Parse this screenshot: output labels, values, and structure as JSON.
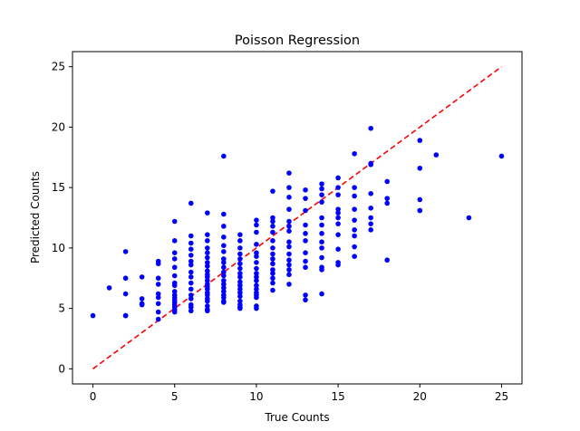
{
  "chart_data": {
    "type": "scatter",
    "title": "Poisson Regression",
    "xlabel": "True Counts",
    "ylabel": "Predicted Counts",
    "xlim": [
      -1.25,
      26.25
    ],
    "ylim": [
      -1.25,
      26.25
    ],
    "xticks": [
      "0",
      "5",
      "10",
      "15",
      "20",
      "25"
    ],
    "yticks": [
      "0",
      "5",
      "10",
      "15",
      "20",
      "25"
    ],
    "grid": false,
    "point_color": "#0000ff",
    "reference_line": {
      "x": [
        0,
        25
      ],
      "y": [
        0,
        25
      ],
      "color": "#ff0000",
      "style": "dashed"
    },
    "x": [
      0,
      1,
      2,
      2,
      2,
      2,
      2,
      3,
      3,
      3,
      3,
      4,
      4,
      4,
      4,
      4,
      4,
      4,
      4,
      4,
      5,
      5,
      5,
      5,
      5,
      5,
      5,
      5,
      5,
      5,
      5,
      5,
      5,
      5,
      5,
      5,
      5,
      6,
      6,
      6,
      6,
      6,
      6,
      6,
      6,
      6,
      6,
      6,
      6,
      6,
      6,
      6,
      6,
      7,
      7,
      7,
      7,
      7,
      7,
      7,
      7,
      7,
      7,
      7,
      7,
      7,
      7,
      7,
      7,
      7,
      7,
      7,
      7,
      7,
      7,
      7,
      8,
      8,
      8,
      8,
      8,
      8,
      8,
      8,
      8,
      8,
      8,
      8,
      8,
      8,
      8,
      8,
      8,
      8,
      8,
      9,
      9,
      9,
      9,
      9,
      9,
      9,
      9,
      9,
      9,
      9,
      9,
      9,
      9,
      9,
      9,
      9,
      9,
      10,
      10,
      10,
      10,
      10,
      10,
      10,
      10,
      10,
      10,
      10,
      10,
      10,
      10,
      10,
      10,
      10,
      10,
      11,
      11,
      11,
      11,
      11,
      11,
      11,
      11,
      11,
      11,
      11,
      11,
      11,
      11,
      11,
      12,
      12,
      12,
      12,
      12,
      12,
      12,
      12,
      12,
      12,
      12,
      12,
      12,
      12,
      12,
      13,
      13,
      13,
      13,
      13,
      13,
      13,
      13,
      13,
      13,
      13,
      14,
      14,
      14,
      14,
      14,
      14,
      14,
      14,
      14,
      14,
      14,
      14,
      14,
      15,
      15,
      15,
      15,
      15,
      15,
      15,
      15,
      15,
      15,
      15,
      16,
      16,
      16,
      16,
      16,
      16,
      16,
      16,
      16,
      17,
      17,
      17,
      17,
      17,
      17,
      17,
      17,
      18,
      18,
      18,
      18,
      20,
      20,
      20,
      20,
      20,
      21,
      23,
      25
    ],
    "y": [
      4.4,
      6.7,
      9.7,
      7.5,
      6.2,
      4.4,
      4.4,
      7.6,
      5.8,
      5.4,
      5.3,
      8.9,
      8.7,
      7.5,
      7.0,
      6.2,
      5.9,
      5.4,
      4.7,
      4.1,
      12.2,
      10.6,
      9.6,
      9.1,
      8.4,
      7.7,
      7.1,
      6.9,
      6.4,
      6.1,
      5.9,
      5.7,
      5.5,
      5.3,
      5.1,
      4.9,
      4.7,
      13.7,
      11.0,
      10.4,
      9.9,
      9.4,
      8.9,
      8.6,
      8.0,
      7.6,
      7.1,
      6.6,
      6.1,
      5.8,
      5.3,
      5.1,
      4.8,
      12.9,
      11.1,
      10.6,
      10.0,
      9.6,
      9.2,
      8.8,
      8.5,
      8.1,
      7.8,
      7.6,
      7.3,
      7.0,
      6.8,
      6.6,
      6.3,
      6.1,
      5.8,
      5.6,
      5.2,
      4.9,
      4.9,
      4.8,
      17.6,
      12.8,
      11.8,
      10.9,
      10.2,
      9.7,
      9.1,
      8.8,
      8.4,
      8.0,
      7.7,
      7.3,
      7.0,
      6.7,
      6.4,
      6.1,
      5.9,
      5.6,
      5.5,
      11.1,
      10.6,
      10.0,
      9.5,
      9.1,
      8.7,
      8.3,
      7.9,
      7.6,
      7.2,
      6.9,
      6.6,
      6.3,
      6.0,
      5.6,
      5.3,
      5.1,
      5.0,
      12.3,
      11.9,
      11.3,
      10.3,
      9.6,
      9.3,
      8.8,
      8.3,
      7.9,
      7.6,
      7.3,
      6.9,
      6.6,
      6.3,
      6.1,
      5.9,
      5.2,
      5.0,
      14.7,
      12.5,
      12.2,
      11.8,
      11.3,
      10.6,
      10.0,
      9.5,
      9.1,
      8.7,
      8.2,
      7.9,
      7.5,
      7.1,
      6.5,
      16.2,
      15.0,
      14.2,
      13.2,
      12.2,
      11.8,
      11.4,
      10.5,
      10.1,
      9.5,
      9.0,
      8.6,
      8.2,
      7.8,
      7.0,
      14.8,
      14.1,
      13.1,
      11.9,
      11.2,
      10.6,
      9.6,
      8.9,
      8.4,
      6.1,
      5.7,
      15.3,
      14.9,
      14.4,
      13.8,
      12.5,
      11.9,
      11.2,
      10.5,
      10.0,
      9.2,
      8.4,
      8.2,
      6.2,
      15.8,
      15.0,
      14.4,
      13.2,
      12.9,
      12.5,
      12.0,
      11.1,
      9.9,
      8.8,
      8.6,
      17.8,
      15.0,
      14.3,
      13.2,
      12.3,
      11.5,
      11.0,
      10.1,
      9.3,
      19.9,
      17.0,
      16.9,
      14.5,
      13.3,
      12.5,
      12.0,
      11.5,
      15.5,
      14.1,
      13.7,
      9.0,
      18.9,
      16.6,
      14.0,
      13.1,
      13.1,
      17.7,
      12.5,
      17.6
    ]
  }
}
